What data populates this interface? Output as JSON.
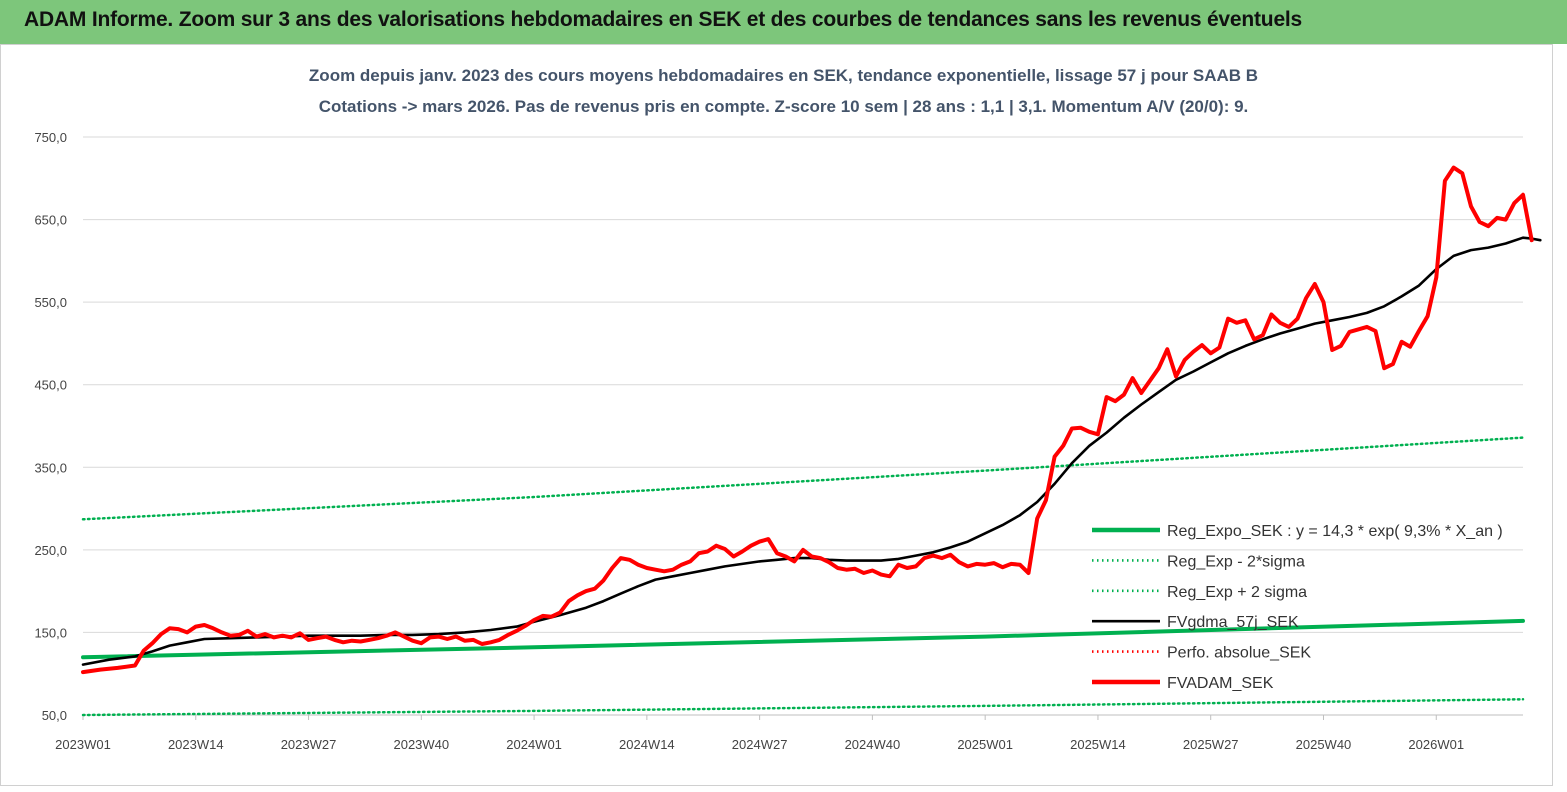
{
  "banner": {
    "title": "ADAM Informe. Zoom sur 3 ans des valorisations hebdomadaires en SEK et des courbes de tendances sans les revenus éventuels",
    "color": "#7dc67b"
  },
  "chart_data": {
    "type": "line",
    "title_line1": "Zoom depuis janv. 2023 des cours moyens hebdomadaires en SEK, tendance exponentielle, lissage 57 j pour SAAB B",
    "title_line2": "Cotations -> mars 2026. Pas de revenus pris en compte. Z-score 10 sem | 28 ans : 1,1 | 3,1. Momentum A/V (20/0): 9.",
    "xlabel": "",
    "ylabel": "",
    "ylim": [
      50,
      750
    ],
    "yticks": [
      "750,0",
      "650,0",
      "550,0",
      "450,0",
      "350,0",
      "250,0",
      "150,0",
      "50,0"
    ],
    "ytick_values": [
      750,
      650,
      550,
      450,
      350,
      250,
      150,
      50
    ],
    "grid": true,
    "legend_position": "right",
    "x_range_weeks": [
      0,
      166
    ],
    "xticks": [
      {
        "label": "2023W01",
        "week": 0
      },
      {
        "label": "2023W14",
        "week": 13
      },
      {
        "label": "2023W27",
        "week": 26
      },
      {
        "label": "2023W40",
        "week": 39
      },
      {
        "label": "2024W01",
        "week": 52
      },
      {
        "label": "2024W14",
        "week": 65
      },
      {
        "label": "2024W27",
        "week": 78
      },
      {
        "label": "2024W40",
        "week": 91
      },
      {
        "label": "2025W01",
        "week": 104
      },
      {
        "label": "2025W14",
        "week": 117
      },
      {
        "label": "2025W27",
        "week": 130
      },
      {
        "label": "2025W40",
        "week": 143
      },
      {
        "label": "2026W01",
        "week": 156
      }
    ],
    "series": [
      {
        "name": "Reg_Expo_SEK : y = 14,3 * exp( 9,3% *  X_an )",
        "color": "#00b050",
        "style": "solid-thick",
        "points": [
          [
            0,
            120
          ],
          [
            52,
            132
          ],
          [
            104,
            145
          ],
          [
            166,
            164
          ]
        ]
      },
      {
        "name": "Reg_Exp - 2*sigma",
        "color": "#00b050",
        "style": "dotted",
        "points": [
          [
            0,
            50
          ],
          [
            52,
            55
          ],
          [
            104,
            61
          ],
          [
            166,
            69
          ]
        ]
      },
      {
        "name": "Reg_Exp + 2 sigma",
        "color": "#00b050",
        "style": "dotted",
        "points": [
          [
            0,
            287
          ],
          [
            52,
            314
          ],
          [
            104,
            346
          ],
          [
            166,
            386
          ]
        ]
      },
      {
        "name": "FVgdma_57j_SEK",
        "color": "#000000",
        "style": "solid",
        "points": [
          [
            0,
            111
          ],
          [
            3,
            117
          ],
          [
            6,
            121
          ],
          [
            8,
            127
          ],
          [
            10,
            134
          ],
          [
            12,
            138
          ],
          [
            14,
            142
          ],
          [
            17,
            143
          ],
          [
            20,
            144
          ],
          [
            23,
            145
          ],
          [
            26,
            146
          ],
          [
            29,
            146
          ],
          [
            32,
            146
          ],
          [
            35,
            147
          ],
          [
            38,
            147
          ],
          [
            41,
            148
          ],
          [
            44,
            150
          ],
          [
            47,
            153
          ],
          [
            50,
            157
          ],
          [
            52,
            163
          ],
          [
            55,
            171
          ],
          [
            58,
            180
          ],
          [
            60,
            188
          ],
          [
            62,
            197
          ],
          [
            64,
            206
          ],
          [
            66,
            214
          ],
          [
            68,
            218
          ],
          [
            70,
            222
          ],
          [
            72,
            226
          ],
          [
            74,
            230
          ],
          [
            76,
            233
          ],
          [
            78,
            236
          ],
          [
            80,
            238
          ],
          [
            82,
            240
          ],
          [
            84,
            240
          ],
          [
            86,
            238
          ],
          [
            88,
            237
          ],
          [
            90,
            237
          ],
          [
            92,
            237
          ],
          [
            94,
            239
          ],
          [
            96,
            243
          ],
          [
            98,
            247
          ],
          [
            100,
            253
          ],
          [
            102,
            260
          ],
          [
            104,
            270
          ],
          [
            106,
            280
          ],
          [
            108,
            292
          ],
          [
            110,
            308
          ],
          [
            112,
            330
          ],
          [
            114,
            355
          ],
          [
            116,
            376
          ],
          [
            118,
            392
          ],
          [
            120,
            410
          ],
          [
            122,
            426
          ],
          [
            124,
            441
          ],
          [
            126,
            456
          ],
          [
            128,
            466
          ],
          [
            130,
            477
          ],
          [
            132,
            488
          ],
          [
            134,
            497
          ],
          [
            136,
            505
          ],
          [
            138,
            512
          ],
          [
            140,
            518
          ],
          [
            142,
            524
          ],
          [
            144,
            528
          ],
          [
            146,
            532
          ],
          [
            148,
            537
          ],
          [
            150,
            545
          ],
          [
            152,
            557
          ],
          [
            154,
            570
          ],
          [
            156,
            590
          ],
          [
            158,
            606
          ],
          [
            160,
            613
          ],
          [
            162,
            616
          ],
          [
            164,
            621
          ],
          [
            166,
            628
          ],
          [
            167,
            627
          ],
          [
            168,
            625
          ]
        ]
      },
      {
        "name": "Perfo. absolue_SEK",
        "color": "#ff0000",
        "style": "dotted",
        "points": []
      },
      {
        "name": "FVADAM_SEK",
        "color": "#ff0000",
        "style": "solid-thick",
        "points": [
          [
            0,
            102
          ],
          [
            2,
            105
          ],
          [
            4,
            107
          ],
          [
            6,
            110
          ],
          [
            7,
            128
          ],
          [
            8,
            137
          ],
          [
            9,
            148
          ],
          [
            10,
            155
          ],
          [
            11,
            154
          ],
          [
            12,
            150
          ],
          [
            13,
            157
          ],
          [
            14,
            159
          ],
          [
            15,
            155
          ],
          [
            16,
            150
          ],
          [
            17,
            146
          ],
          [
            18,
            147
          ],
          [
            19,
            152
          ],
          [
            20,
            145
          ],
          [
            21,
            148
          ],
          [
            22,
            144
          ],
          [
            23,
            146
          ],
          [
            24,
            144
          ],
          [
            25,
            149
          ],
          [
            26,
            141
          ],
          [
            27,
            143
          ],
          [
            28,
            145
          ],
          [
            29,
            141
          ],
          [
            30,
            138
          ],
          [
            31,
            140
          ],
          [
            32,
            139
          ],
          [
            33,
            141
          ],
          [
            34,
            143
          ],
          [
            35,
            146
          ],
          [
            36,
            150
          ],
          [
            37,
            145
          ],
          [
            38,
            140
          ],
          [
            39,
            137
          ],
          [
            40,
            144
          ],
          [
            41,
            145
          ],
          [
            42,
            142
          ],
          [
            43,
            145
          ],
          [
            44,
            140
          ],
          [
            45,
            141
          ],
          [
            46,
            136
          ],
          [
            47,
            138
          ],
          [
            48,
            141
          ],
          [
            49,
            147
          ],
          [
            50,
            152
          ],
          [
            51,
            158
          ],
          [
            52,
            165
          ],
          [
            53,
            170
          ],
          [
            54,
            169
          ],
          [
            55,
            174
          ],
          [
            56,
            188
          ],
          [
            57,
            195
          ],
          [
            58,
            200
          ],
          [
            59,
            203
          ],
          [
            60,
            213
          ],
          [
            61,
            228
          ],
          [
            62,
            240
          ],
          [
            63,
            238
          ],
          [
            64,
            232
          ],
          [
            65,
            228
          ],
          [
            66,
            226
          ],
          [
            67,
            224
          ],
          [
            68,
            226
          ],
          [
            69,
            232
          ],
          [
            70,
            236
          ],
          [
            71,
            246
          ],
          [
            72,
            248
          ],
          [
            73,
            255
          ],
          [
            74,
            251
          ],
          [
            75,
            242
          ],
          [
            76,
            248
          ],
          [
            77,
            255
          ],
          [
            78,
            260
          ],
          [
            79,
            263
          ],
          [
            80,
            246
          ],
          [
            81,
            242
          ],
          [
            82,
            236
          ],
          [
            83,
            250
          ],
          [
            84,
            242
          ],
          [
            85,
            240
          ],
          [
            86,
            235
          ],
          [
            87,
            228
          ],
          [
            88,
            226
          ],
          [
            89,
            227
          ],
          [
            90,
            222
          ],
          [
            91,
            225
          ],
          [
            92,
            220
          ],
          [
            93,
            218
          ],
          [
            94,
            232
          ],
          [
            95,
            228
          ],
          [
            96,
            230
          ],
          [
            97,
            240
          ],
          [
            98,
            243
          ],
          [
            99,
            240
          ],
          [
            100,
            244
          ],
          [
            101,
            235
          ],
          [
            102,
            230
          ],
          [
            103,
            233
          ],
          [
            104,
            232
          ],
          [
            105,
            234
          ],
          [
            106,
            229
          ],
          [
            107,
            233
          ],
          [
            108,
            232
          ],
          [
            109,
            222
          ],
          [
            110,
            288
          ],
          [
            111,
            310
          ],
          [
            112,
            363
          ],
          [
            113,
            376
          ],
          [
            114,
            397
          ],
          [
            115,
            398
          ],
          [
            116,
            393
          ],
          [
            117,
            390
          ],
          [
            118,
            435
          ],
          [
            119,
            430
          ],
          [
            120,
            438
          ],
          [
            121,
            458
          ],
          [
            122,
            440
          ],
          [
            123,
            455
          ],
          [
            124,
            470
          ],
          [
            125,
            493
          ],
          [
            126,
            460
          ],
          [
            127,
            480
          ],
          [
            128,
            490
          ],
          [
            129,
            498
          ],
          [
            130,
            488
          ],
          [
            131,
            495
          ],
          [
            132,
            530
          ],
          [
            133,
            525
          ],
          [
            134,
            528
          ],
          [
            135,
            505
          ],
          [
            136,
            510
          ],
          [
            137,
            535
          ],
          [
            138,
            525
          ],
          [
            139,
            520
          ],
          [
            140,
            530
          ],
          [
            141,
            555
          ],
          [
            142,
            572
          ],
          [
            143,
            550
          ],
          [
            144,
            492
          ],
          [
            145,
            497
          ],
          [
            146,
            514
          ],
          [
            147,
            517
          ],
          [
            148,
            520
          ],
          [
            149,
            515
          ],
          [
            150,
            470
          ],
          [
            151,
            475
          ],
          [
            152,
            502
          ],
          [
            153,
            496
          ],
          [
            154,
            515
          ],
          [
            155,
            533
          ],
          [
            156,
            580
          ],
          [
            157,
            697
          ],
          [
            158,
            713
          ],
          [
            159,
            706
          ],
          [
            160,
            666
          ],
          [
            161,
            647
          ],
          [
            162,
            642
          ],
          [
            163,
            652
          ],
          [
            164,
            650
          ],
          [
            165,
            670
          ],
          [
            166,
            680
          ],
          [
            167,
            625
          ]
        ]
      }
    ]
  }
}
